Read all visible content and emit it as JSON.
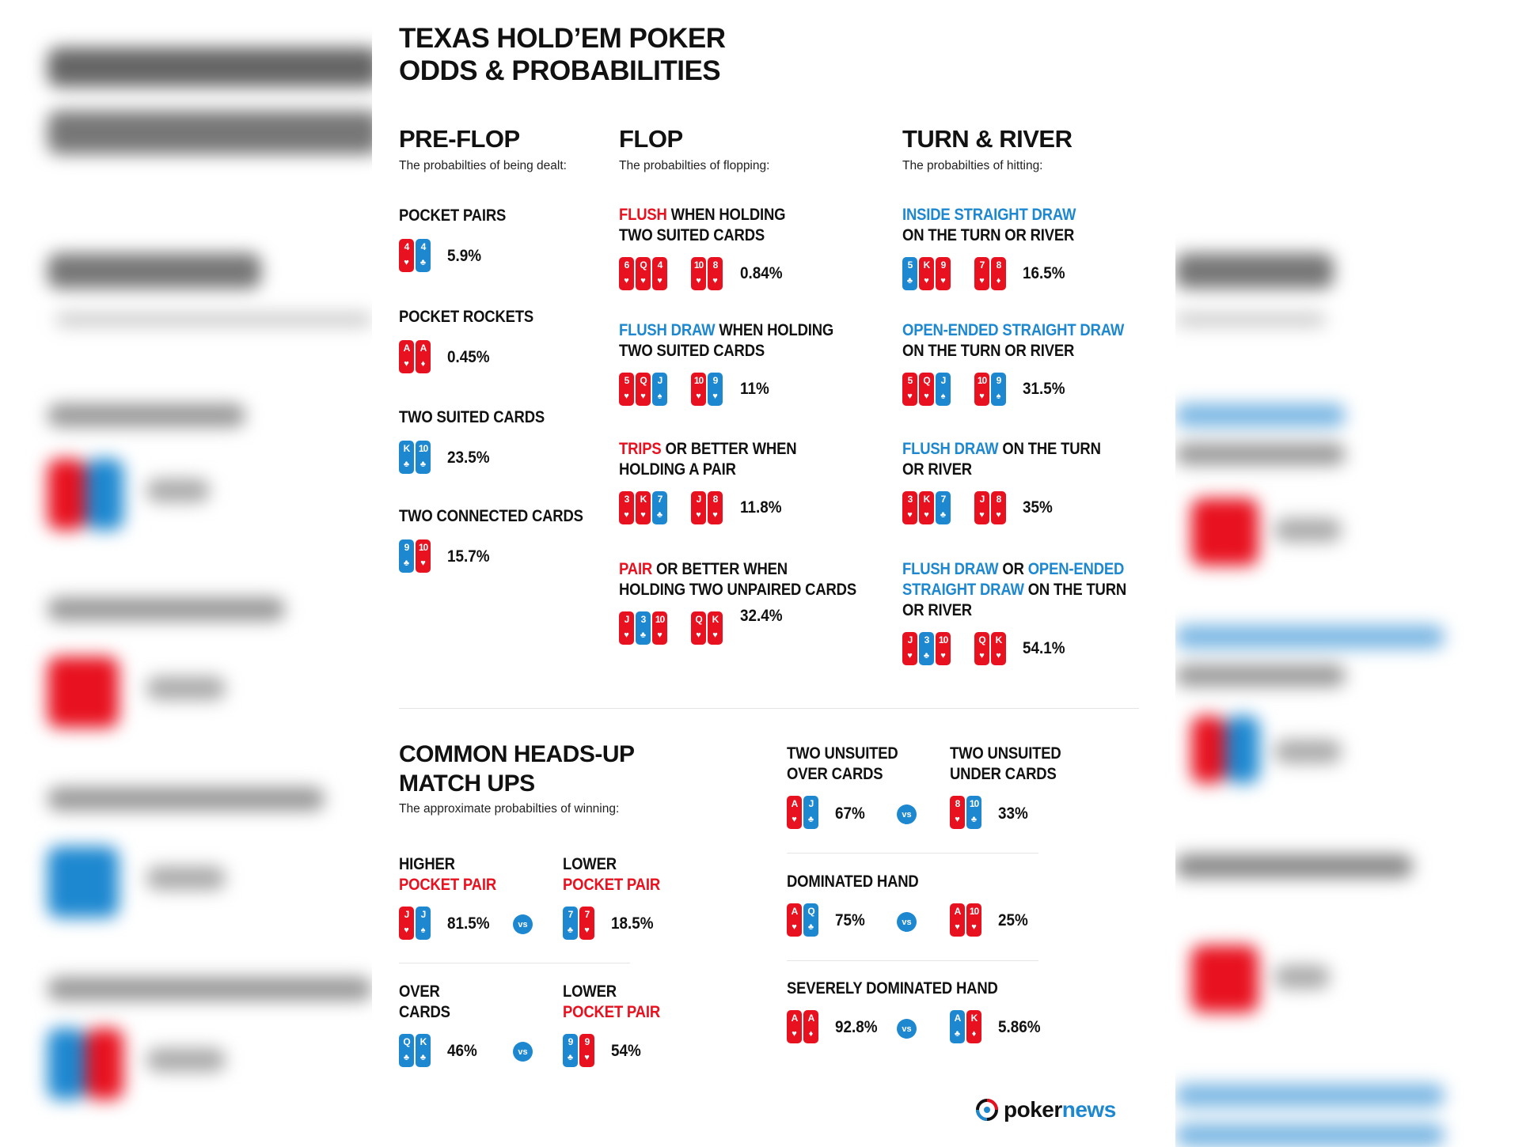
{
  "colors": {
    "red": "#e8111f",
    "blue": "#1d88d0"
  },
  "title": "TEXAS HOLD’EM POKER\nODDS & PROBABILITIES",
  "preflop": {
    "heading": "PRE-FLOP",
    "sub": "The probabilties of being dealt:",
    "items": [
      {
        "label": "POCKET PAIRS",
        "cards": [
          {
            "r": "4",
            "s": "♥",
            "c": "red"
          },
          {
            "r": "4",
            "s": "♣",
            "c": "blue"
          }
        ],
        "pct": "5.9%"
      },
      {
        "label": "POCKET ROCKETS",
        "cards": [
          {
            "r": "A",
            "s": "♥",
            "c": "red"
          },
          {
            "r": "A",
            "s": "♦",
            "c": "red"
          }
        ],
        "pct": "0.45%"
      },
      {
        "label": "TWO SUITED CARDS",
        "cards": [
          {
            "r": "K",
            "s": "♣",
            "c": "blue"
          },
          {
            "r": "10",
            "s": "♣",
            "c": "blue"
          }
        ],
        "pct": "23.5%"
      },
      {
        "label": "TWO CONNECTED CARDS",
        "cards": [
          {
            "r": "9",
            "s": "♣",
            "c": "blue"
          },
          {
            "r": "10",
            "s": "♥",
            "c": "red"
          }
        ],
        "pct": "15.7%"
      }
    ]
  },
  "flop": {
    "heading": "FLOP",
    "sub": "The probabilties of flopping:",
    "items": [
      {
        "l1": [
          {
            "t": "FLUSH",
            "c": "red"
          },
          {
            "t": " WHEN HOLDING",
            "c": ""
          }
        ],
        "l2": [
          {
            "t": "TWO SUITED CARDS",
            "c": ""
          }
        ],
        "board": [
          {
            "r": "6",
            "s": "♥",
            "c": "red"
          },
          {
            "r": "Q",
            "s": "♥",
            "c": "red"
          },
          {
            "r": "4",
            "s": "♥",
            "c": "red"
          }
        ],
        "hand": [
          {
            "r": "10",
            "s": "♥",
            "c": "red"
          },
          {
            "r": "8",
            "s": "♥",
            "c": "red"
          }
        ],
        "pct": "0.84%"
      },
      {
        "l1": [
          {
            "t": "FLUSH DRAW",
            "c": "blue"
          },
          {
            "t": " WHEN HOLDING",
            "c": ""
          }
        ],
        "l2": [
          {
            "t": "TWO SUITED CARDS",
            "c": ""
          }
        ],
        "board": [
          {
            "r": "5",
            "s": "♥",
            "c": "red"
          },
          {
            "r": "Q",
            "s": "♥",
            "c": "red"
          },
          {
            "r": "J",
            "s": "♠",
            "c": "blue"
          }
        ],
        "hand": [
          {
            "r": "10",
            "s": "♥",
            "c": "red"
          },
          {
            "r": "9",
            "s": "♥",
            "c": "blue"
          }
        ],
        "pct": "11%"
      },
      {
        "l1": [
          {
            "t": "TRIPS",
            "c": "red"
          },
          {
            "t": " OR BETTER WHEN",
            "c": ""
          }
        ],
        "l2": [
          {
            "t": "HOLDING A PAIR",
            "c": ""
          }
        ],
        "board": [
          {
            "r": "3",
            "s": "♥",
            "c": "red"
          },
          {
            "r": "K",
            "s": "♥",
            "c": "red"
          },
          {
            "r": "7",
            "s": "♣",
            "c": "blue"
          }
        ],
        "hand": [
          {
            "r": "J",
            "s": "♥",
            "c": "red"
          },
          {
            "r": "8",
            "s": "♥",
            "c": "red"
          }
        ],
        "pct": "11.8%"
      },
      {
        "l1": [
          {
            "t": "PAIR",
            "c": "red"
          },
          {
            "t": " OR BETTER WHEN",
            "c": ""
          }
        ],
        "l2": [
          {
            "t": "HOLDING TWO UNPAIRED CARDS",
            "c": ""
          }
        ],
        "board": [
          {
            "r": "J",
            "s": "♥",
            "c": "red"
          },
          {
            "r": "3",
            "s": "♣",
            "c": "blue"
          },
          {
            "r": "10",
            "s": "♥",
            "c": "red"
          }
        ],
        "hand": [
          {
            "r": "Q",
            "s": "♥",
            "c": "red"
          },
          {
            "r": "K",
            "s": "♥",
            "c": "red"
          }
        ],
        "pct": "32.4%"
      }
    ]
  },
  "turnriver": {
    "heading": "TURN & RIVER",
    "sub": "The probabilties of hitting:",
    "items": [
      {
        "lines": [
          [
            {
              "t": "INSIDE STRAIGHT DRAW",
              "c": "blue"
            }
          ],
          [
            {
              "t": "ON THE TURN OR RIVER",
              "c": ""
            }
          ]
        ],
        "board": [
          {
            "r": "5",
            "s": "♣",
            "c": "blue"
          },
          {
            "r": "K",
            "s": "♥",
            "c": "red"
          },
          {
            "r": "9",
            "s": "♥",
            "c": "red"
          }
        ],
        "hand": [
          {
            "r": "7",
            "s": "♥",
            "c": "red"
          },
          {
            "r": "8",
            "s": "♦",
            "c": "red"
          }
        ],
        "pct": "16.5%"
      },
      {
        "lines": [
          [
            {
              "t": "OPEN-ENDED STRAIGHT DRAW",
              "c": "blue"
            }
          ],
          [
            {
              "t": "ON THE TURN OR RIVER",
              "c": ""
            }
          ]
        ],
        "board": [
          {
            "r": "5",
            "s": "♥",
            "c": "red"
          },
          {
            "r": "Q",
            "s": "♥",
            "c": "red"
          },
          {
            "r": "J",
            "s": "♠",
            "c": "blue"
          }
        ],
        "hand": [
          {
            "r": "10",
            "s": "♥",
            "c": "red"
          },
          {
            "r": "9",
            "s": "♠",
            "c": "blue"
          }
        ],
        "pct": "31.5%"
      },
      {
        "lines": [
          [
            {
              "t": "FLUSH DRAW",
              "c": "blue"
            },
            {
              "t": " ON THE TURN",
              "c": ""
            }
          ],
          [
            {
              "t": "OR RIVER",
              "c": ""
            }
          ]
        ],
        "board": [
          {
            "r": "3",
            "s": "♥",
            "c": "red"
          },
          {
            "r": "K",
            "s": "♥",
            "c": "red"
          },
          {
            "r": "7",
            "s": "♣",
            "c": "blue"
          }
        ],
        "hand": [
          {
            "r": "J",
            "s": "♥",
            "c": "red"
          },
          {
            "r": "8",
            "s": "♥",
            "c": "red"
          }
        ],
        "pct": "35%"
      },
      {
        "lines": [
          [
            {
              "t": "FLUSH DRAW",
              "c": "blue"
            },
            {
              "t": " OR ",
              "c": ""
            },
            {
              "t": "OPEN-ENDED",
              "c": "blue"
            }
          ],
          [
            {
              "t": "STRAIGHT DRAW",
              "c": "blue"
            },
            {
              "t": " ON THE TURN",
              "c": ""
            }
          ],
          [
            {
              "t": "OR RIVER",
              "c": ""
            }
          ]
        ],
        "board": [
          {
            "r": "J",
            "s": "♥",
            "c": "red"
          },
          {
            "r": "3",
            "s": "♣",
            "c": "blue"
          },
          {
            "r": "10",
            "s": "♥",
            "c": "red"
          }
        ],
        "hand": [
          {
            "r": "Q",
            "s": "♥",
            "c": "red"
          },
          {
            "r": "K",
            "s": "♥",
            "c": "red"
          }
        ],
        "pct": "54.1%"
      }
    ]
  },
  "headsup": {
    "heading": "COMMON HEADS-UP\nMATCH UPS",
    "sub": "The approximate probabilties of winning:",
    "vs": "vs",
    "left": [
      {
        "a_l1": "HIGHER",
        "a_l2": "POCKET PAIR",
        "a_cards": [
          {
            "r": "J",
            "s": "♥",
            "c": "red"
          },
          {
            "r": "J",
            "s": "♠",
            "c": "blue"
          }
        ],
        "a_pct": "81.5%",
        "b_l1": "LOWER",
        "b_l2": "POCKET PAIR",
        "b_cards": [
          {
            "r": "7",
            "s": "♣",
            "c": "blue"
          },
          {
            "r": "7",
            "s": "♥",
            "c": "red"
          }
        ],
        "b_pct": "18.5%"
      },
      {
        "a_l1": "OVER",
        "a_l2": "CARDS",
        "a_cards": [
          {
            "r": "Q",
            "s": "♣",
            "c": "blue"
          },
          {
            "r": "K",
            "s": "♣",
            "c": "blue"
          }
        ],
        "a_pct": "46%",
        "b_l1": "LOWER",
        "b_l2": "POCKET PAIR",
        "b_cards": [
          {
            "r": "9",
            "s": "♣",
            "c": "blue"
          },
          {
            "r": "9",
            "s": "♥",
            "c": "red"
          }
        ],
        "b_pct": "54%"
      }
    ],
    "right": [
      {
        "a_l1": "TWO UNSUITED",
        "a_l2": "OVER CARDS",
        "a_cards": [
          {
            "r": "A",
            "s": "♥",
            "c": "red"
          },
          {
            "r": "J",
            "s": "♣",
            "c": "blue"
          }
        ],
        "a_pct": "67%",
        "b_l1": "TWO UNSUITED",
        "b_l2": "UNDER CARDS",
        "b_cards": [
          {
            "r": "8",
            "s": "♥",
            "c": "red"
          },
          {
            "r": "10",
            "s": "♣",
            "c": "blue"
          }
        ],
        "b_pct": "33%"
      },
      {
        "title": "DOMINATED HAND",
        "a_cards": [
          {
            "r": "A",
            "s": "♥",
            "c": "red"
          },
          {
            "r": "Q",
            "s": "♣",
            "c": "blue"
          }
        ],
        "a_pct": "75%",
        "b_cards": [
          {
            "r": "A",
            "s": "♥",
            "c": "red"
          },
          {
            "r": "10",
            "s": "♥",
            "c": "red"
          }
        ],
        "b_pct": "25%"
      },
      {
        "title": "SEVERELY DOMINATED HAND",
        "a_cards": [
          {
            "r": "A",
            "s": "♥",
            "c": "red"
          },
          {
            "r": "A",
            "s": "♦",
            "c": "red"
          }
        ],
        "a_pct": "92.8%",
        "b_cards": [
          {
            "r": "A",
            "s": "♣",
            "c": "blue"
          },
          {
            "r": "K",
            "s": "♦",
            "c": "red"
          }
        ],
        "b_pct": "5.86%"
      }
    ]
  },
  "logo": {
    "part1": "poker",
    "part2": "news",
    "icon": "pokernews-logo-icon"
  }
}
